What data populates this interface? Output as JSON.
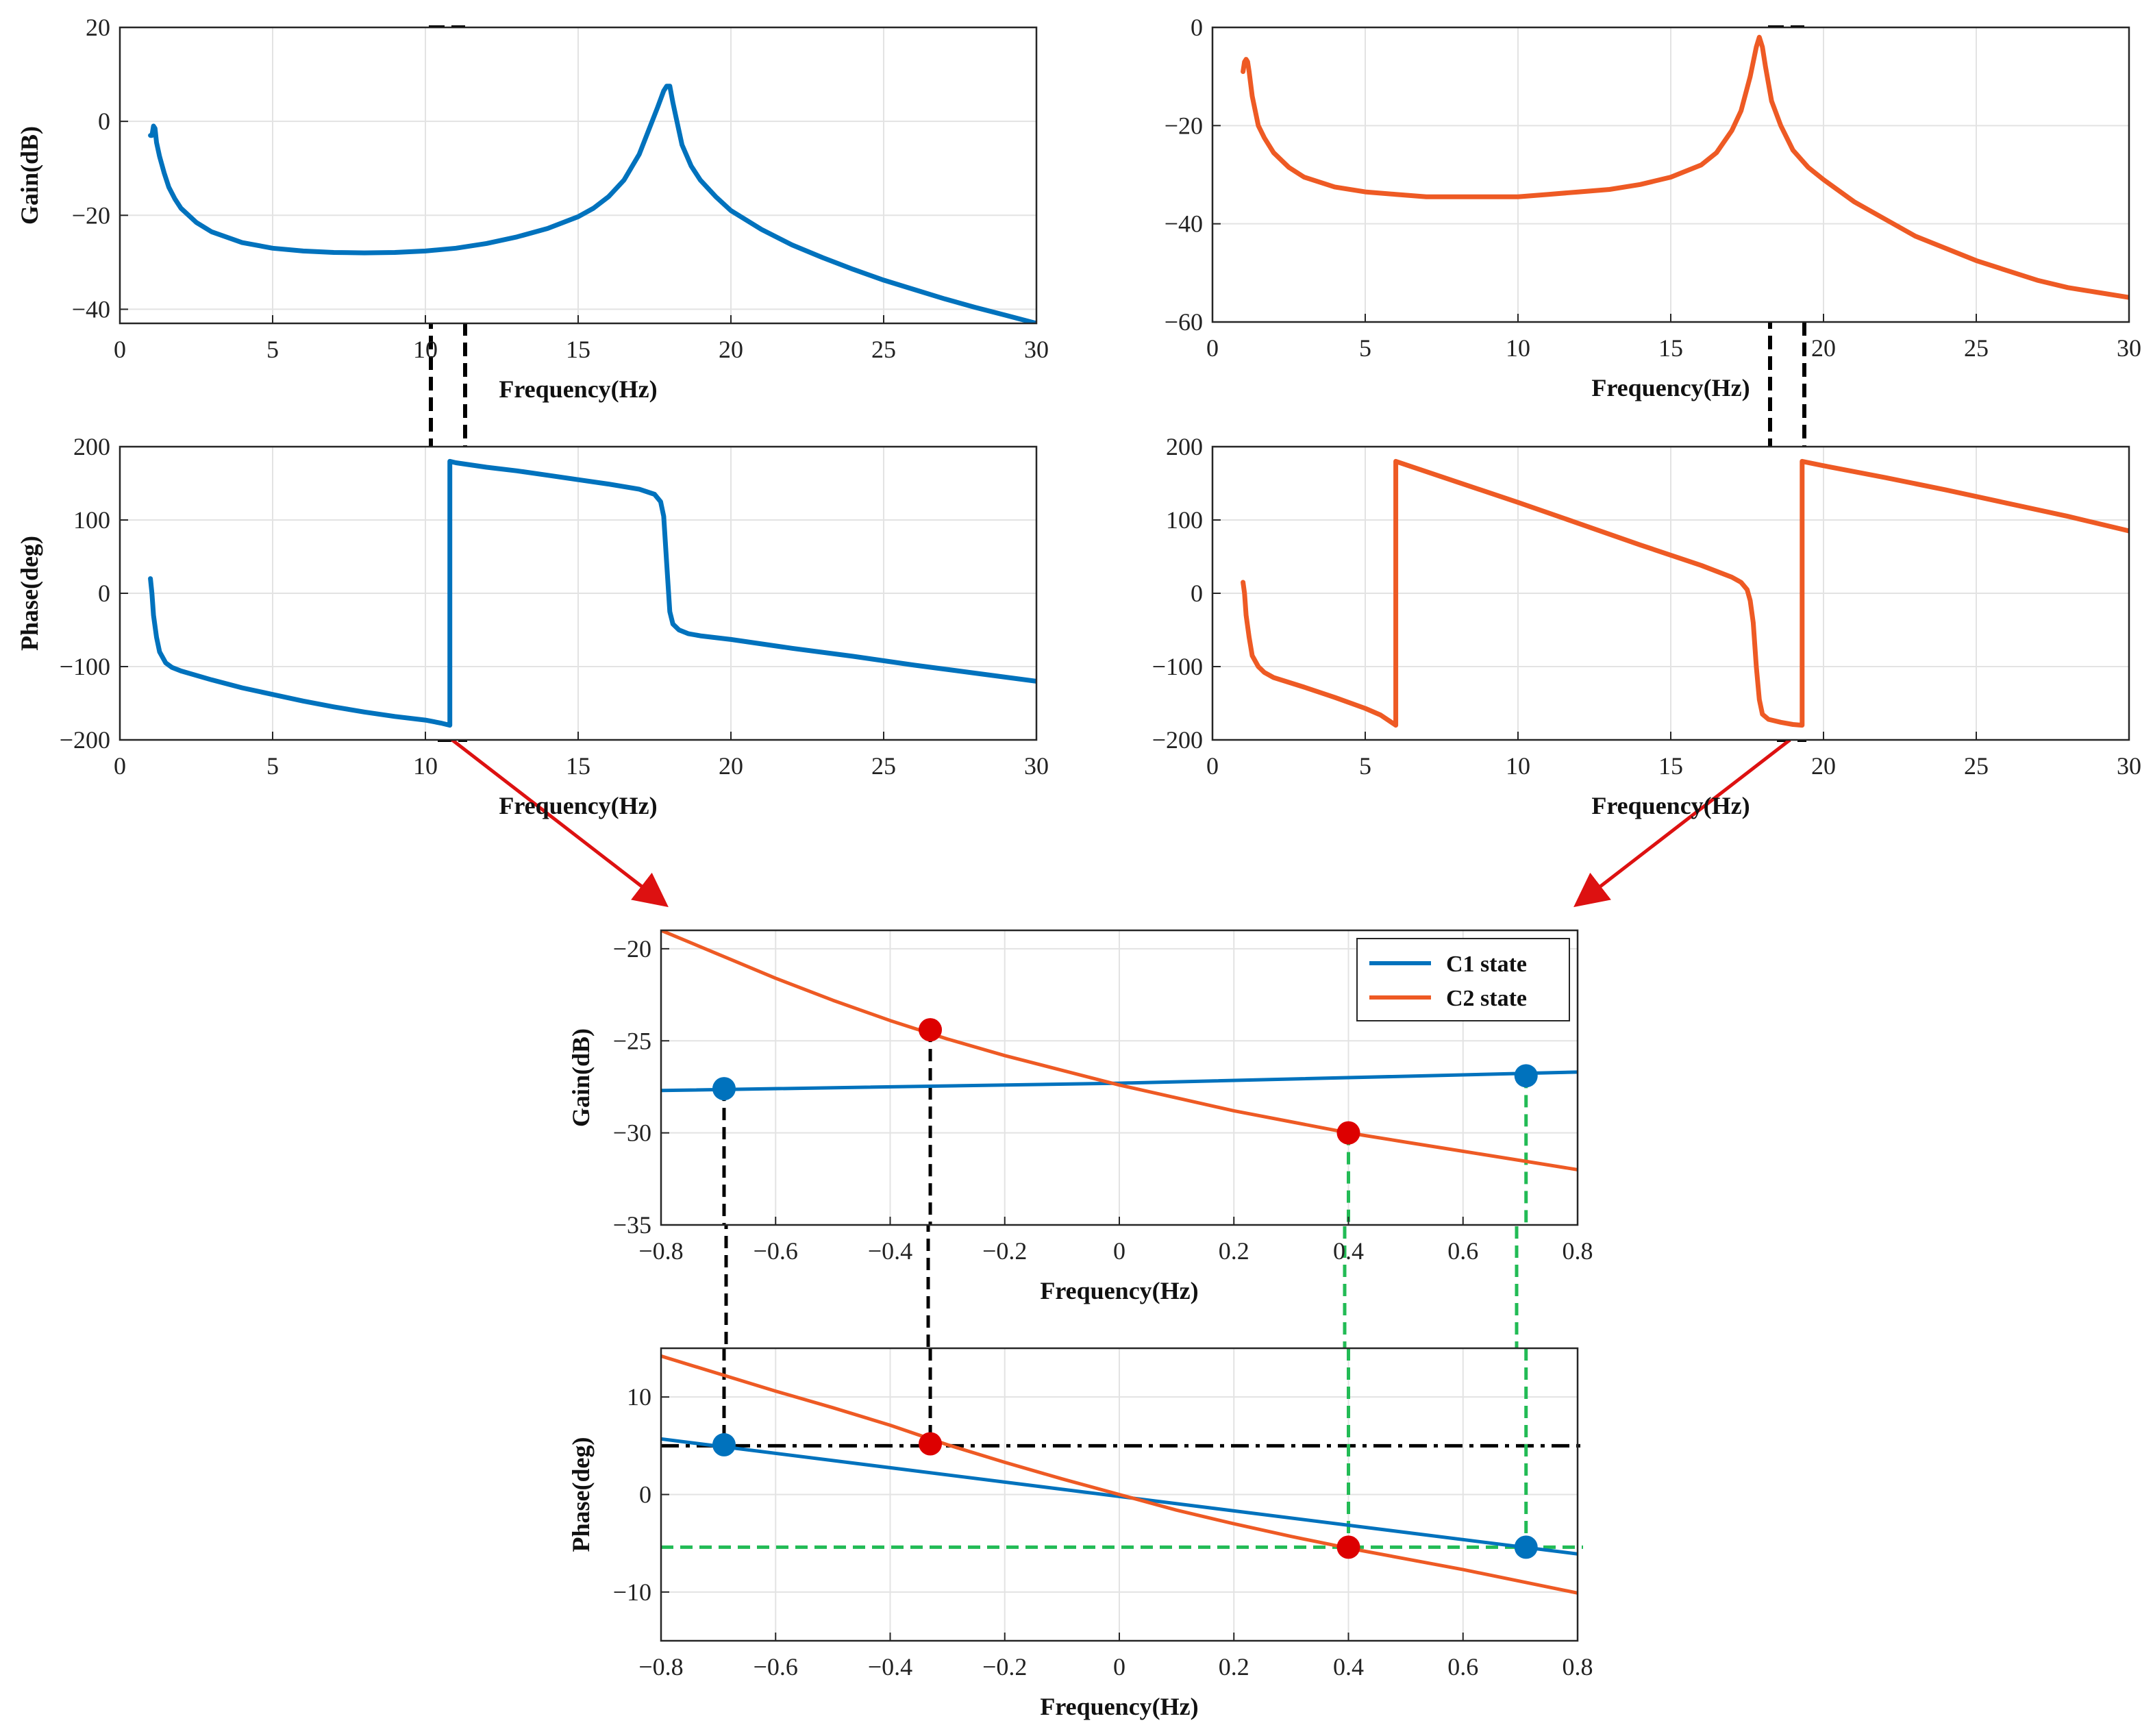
{
  "chart_data": [
    {
      "id": "c1_gain",
      "type": "line",
      "xlabel": "Frequency(Hz)",
      "ylabel": "Gain(dB)",
      "xlim": [
        0,
        30
      ],
      "ylim": [
        -43,
        20
      ],
      "xticks": [
        0,
        5,
        10,
        15,
        20,
        25,
        30
      ],
      "yticks": [
        -40,
        -20,
        0,
        20
      ],
      "series": [
        {
          "name": "C1 state",
          "color": "#0072BD",
          "x": [
            1.0,
            1.05,
            1.1,
            1.15,
            1.2,
            1.3,
            1.45,
            1.6,
            1.8,
            2.0,
            2.5,
            3,
            4,
            5,
            6,
            7,
            8,
            9,
            10,
            11,
            12,
            13,
            14,
            15,
            15.5,
            16,
            16.5,
            17,
            17.3,
            17.6,
            17.8,
            17.9,
            18.0,
            18.1,
            18.2,
            18.4,
            18.7,
            19,
            19.5,
            20,
            21,
            22,
            23,
            24,
            25,
            26,
            27,
            28,
            29,
            30
          ],
          "y": [
            -3,
            -3,
            -1,
            -1.5,
            -4.5,
            -7.5,
            -11,
            -14,
            -16.5,
            -18.5,
            -21.5,
            -23.5,
            -25.8,
            -27,
            -27.6,
            -27.9,
            -28,
            -27.9,
            -27.6,
            -27,
            -26,
            -24.6,
            -22.8,
            -20.3,
            -18.5,
            -16,
            -12.5,
            -7,
            -2,
            3,
            6.5,
            7.5,
            7.5,
            4,
            1,
            -5,
            -9.5,
            -12.5,
            -16,
            -19,
            -23,
            -26.3,
            -29,
            -31.5,
            -33.8,
            -35.8,
            -37.8,
            -39.6,
            -41.3,
            -43
          ]
        }
      ]
    },
    {
      "id": "c1_phase",
      "type": "line",
      "xlabel": "Frequency(Hz)",
      "ylabel": "Phase(deg)",
      "xlim": [
        0,
        30
      ],
      "ylim": [
        -200,
        200
      ],
      "xticks": [
        0,
        5,
        10,
        15,
        20,
        25,
        30
      ],
      "yticks": [
        -200,
        -100,
        0,
        100,
        200
      ],
      "series": [
        {
          "name": "C1 state",
          "color": "#0072BD",
          "x": [
            1.0,
            1.05,
            1.1,
            1.2,
            1.3,
            1.5,
            1.7,
            2,
            3,
            4,
            5,
            6,
            7,
            8,
            9,
            10,
            10.5,
            10.8,
            10.8,
            11,
            12,
            13,
            14,
            15,
            16,
            17,
            17.5,
            17.7,
            17.8,
            17.9,
            18.0,
            18.1,
            18.3,
            18.6,
            19,
            20,
            22,
            24,
            26,
            28,
            30
          ],
          "y": [
            20,
            0,
            -30,
            -60,
            -80,
            -95,
            -101,
            -106,
            -118,
            -129,
            -138,
            -147,
            -155,
            -162,
            -168,
            -173,
            -177,
            -180,
            180,
            178,
            172,
            167,
            161,
            155,
            149,
            142,
            135,
            125,
            105,
            40,
            -25,
            -42,
            -50,
            -55,
            -58,
            -63,
            -75,
            -86,
            -98,
            -109,
            -120
          ]
        }
      ]
    },
    {
      "id": "c2_gain",
      "type": "line",
      "xlabel": "Frequency(Hz)",
      "ylabel": "",
      "xlim": [
        0,
        30
      ],
      "ylim": [
        -60,
        0
      ],
      "xticks": [
        0,
        5,
        10,
        15,
        20,
        25,
        30
      ],
      "yticks": [
        -60,
        -40,
        -20,
        0
      ],
      "series": [
        {
          "name": "C2 state",
          "color": "#EE5A24",
          "x": [
            1.0,
            1.05,
            1.1,
            1.15,
            1.2,
            1.3,
            1.5,
            1.7,
            2,
            2.5,
            3,
            4,
            5,
            6,
            7,
            8,
            9,
            10,
            11,
            12,
            13,
            14,
            15,
            16,
            16.5,
            17,
            17.3,
            17.6,
            17.8,
            17.9,
            18.0,
            18.1,
            18.3,
            18.6,
            19,
            19.5,
            20,
            21,
            22,
            23,
            24,
            25,
            26,
            27,
            28,
            29,
            30
          ],
          "y": [
            -9,
            -7,
            -6.5,
            -7,
            -9,
            -14,
            -20,
            -22.5,
            -25.5,
            -28.5,
            -30.5,
            -32.5,
            -33.5,
            -34,
            -34.5,
            -34.5,
            -34.5,
            -34.5,
            -34,
            -33.5,
            -33,
            -32,
            -30.5,
            -28,
            -25.5,
            -21,
            -17,
            -10,
            -4,
            -2,
            -4,
            -8,
            -15,
            -20,
            -25,
            -28.5,
            -31,
            -35.5,
            -39,
            -42.5,
            -45,
            -47.5,
            -49.5,
            -51.5,
            -53,
            -54,
            -55
          ]
        }
      ]
    },
    {
      "id": "c2_phase",
      "type": "line",
      "xlabel": "Frequency(Hz)",
      "ylabel": "",
      "xlim": [
        0,
        30
      ],
      "ylim": [
        -200,
        200
      ],
      "xticks": [
        0,
        5,
        10,
        15,
        20,
        25,
        30
      ],
      "yticks": [
        -200,
        -100,
        0,
        100,
        200
      ],
      "series": [
        {
          "name": "C2 state",
          "color": "#EE5A24",
          "x": [
            1.0,
            1.05,
            1.1,
            1.2,
            1.3,
            1.5,
            1.7,
            2,
            3,
            4,
            5,
            5.5,
            6.0,
            6.0,
            8,
            10,
            12,
            14,
            16,
            17,
            17.3,
            17.5,
            17.6,
            17.7,
            17.8,
            17.9,
            18.0,
            18.2,
            18.6,
            19.0,
            19.3,
            19.3,
            20,
            22,
            24,
            26,
            28,
            30
          ],
          "y": [
            15,
            0,
            -30,
            -60,
            -85,
            -100,
            -108,
            -115,
            -128,
            -142,
            -157,
            -166,
            -180,
            180,
            152,
            124,
            95,
            66,
            38,
            22,
            15,
            5,
            -10,
            -40,
            -100,
            -145,
            -165,
            -172,
            -176,
            -179,
            -180,
            180,
            174,
            158,
            141,
            123,
            105,
            85
          ]
        }
      ]
    },
    {
      "id": "zoom_gain",
      "type": "line",
      "xlabel": "Frequency(Hz)",
      "ylabel": "Gain(dB)",
      "xlim": [
        -0.8,
        0.8
      ],
      "ylim": [
        -35,
        -19
      ],
      "xticks": [
        -0.8,
        -0.6,
        -0.4,
        -0.2,
        0,
        0.2,
        0.4,
        0.6,
        0.8
      ],
      "yticks": [
        -35,
        -30,
        -25,
        -20
      ],
      "legend_position": "top-right",
      "series": [
        {
          "name": "C1 state",
          "color": "#0072BD",
          "x": [
            -0.8,
            0,
            0.8
          ],
          "y": [
            -27.7,
            -27.3,
            -26.7
          ]
        },
        {
          "name": "C2 state",
          "color": "#EE5A24",
          "x": [
            -0.8,
            -0.7,
            -0.6,
            -0.5,
            -0.4,
            -0.3,
            -0.2,
            -0.1,
            0,
            0.1,
            0.2,
            0.3,
            0.4,
            0.5,
            0.6,
            0.7,
            0.8
          ],
          "y": [
            -19,
            -20.3,
            -21.6,
            -22.8,
            -23.9,
            -24.9,
            -25.8,
            -26.6,
            -27.4,
            -28.1,
            -28.8,
            -29.4,
            -30,
            -30.5,
            -31,
            -31.5,
            -32
          ]
        }
      ],
      "markers": [
        {
          "x": -0.69,
          "y": -27.6,
          "color": "#0072BD"
        },
        {
          "x": 0.71,
          "y": -26.9,
          "color": "#0072BD"
        },
        {
          "x": -0.33,
          "y": -24.4,
          "color": "#DD0000"
        },
        {
          "x": 0.4,
          "y": -30.0,
          "color": "#DD0000"
        }
      ],
      "vlines": [
        {
          "x": -0.69,
          "from": -27.6,
          "color": "#000000"
        },
        {
          "x": -0.33,
          "from": -24.4,
          "color": "#000000"
        },
        {
          "x": 0.4,
          "from": -30.0,
          "color": "#22BB55"
        },
        {
          "x": 0.71,
          "from": -26.9,
          "color": "#22BB55"
        }
      ]
    },
    {
      "id": "zoom_phase",
      "type": "line",
      "xlabel": "Frequency(Hz)",
      "ylabel": "Phase(deg)",
      "xlim": [
        -0.8,
        0.8
      ],
      "ylim": [
        -15,
        15
      ],
      "xticks": [
        -0.8,
        -0.6,
        -0.4,
        -0.2,
        0,
        0.2,
        0.4,
        0.6,
        0.8
      ],
      "yticks": [
        -10,
        0,
        10
      ],
      "series": [
        {
          "name": "C1 state",
          "color": "#0072BD",
          "x": [
            -0.8,
            0.8
          ],
          "y": [
            5.7,
            -6.1
          ]
        },
        {
          "name": "C2 state",
          "color": "#EE5A24",
          "x": [
            -0.8,
            -0.7,
            -0.6,
            -0.5,
            -0.4,
            -0.3,
            -0.2,
            -0.1,
            0,
            0.1,
            0.2,
            0.3,
            0.4,
            0.5,
            0.6,
            0.7,
            0.8
          ],
          "y": [
            14.2,
            12.4,
            10.6,
            8.9,
            7.1,
            5.1,
            3.3,
            1.6,
            0,
            -1.6,
            -3,
            -4.3,
            -5.5,
            -6.6,
            -7.7,
            -8.9,
            -10.1
          ]
        }
      ],
      "markers": [
        {
          "x": -0.69,
          "y": 5.1,
          "color": "#0072BD"
        },
        {
          "x": 0.71,
          "y": -5.4,
          "color": "#0072BD"
        },
        {
          "x": -0.33,
          "y": 5.2,
          "color": "#DD0000"
        },
        {
          "x": 0.4,
          "y": -5.4,
          "color": "#DD0000"
        }
      ],
      "vlines": [
        {
          "x": -0.69,
          "to": 5.1,
          "color": "#000000"
        },
        {
          "x": -0.33,
          "to": 5.2,
          "color": "#000000"
        },
        {
          "x": 0.4,
          "to": -5.4,
          "color": "#22BB55"
        },
        {
          "x": 0.71,
          "to": -5.4,
          "color": "#22BB55"
        }
      ],
      "hlines": [
        {
          "y": 5.0,
          "color": "#000000",
          "style": "dash-dot"
        },
        {
          "y": -5.4,
          "color": "#22BB55",
          "style": "dashed"
        }
      ]
    }
  ]
}
